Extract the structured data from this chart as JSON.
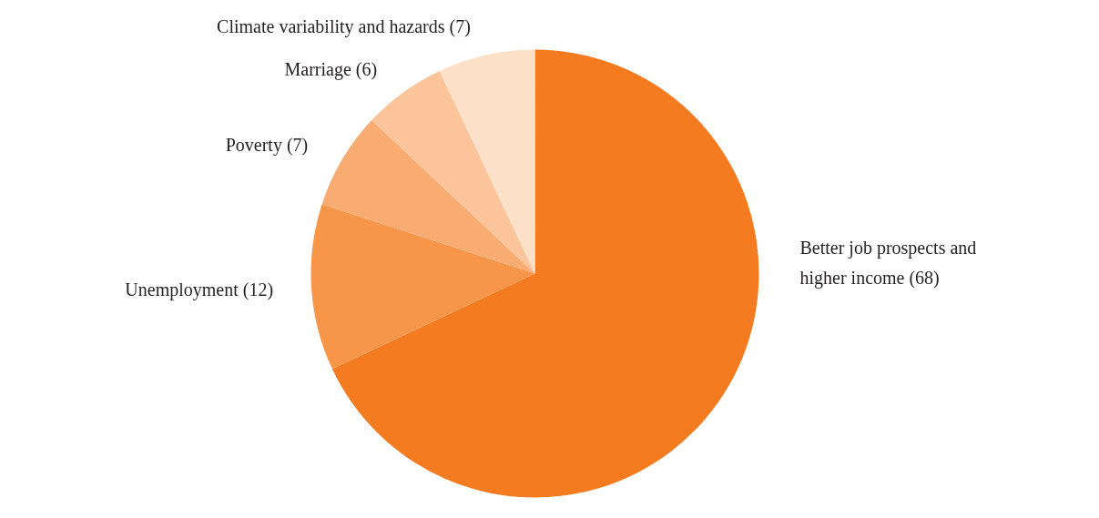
{
  "chart_data": {
    "type": "pie",
    "categories": [
      "Better job prospects and higher income (68)",
      "Unemployment (12)",
      "Poverty (7)",
      "Marriage (6)",
      "Climate variability and hazards (7)"
    ],
    "values": [
      68,
      12,
      7,
      6,
      7
    ],
    "colors": [
      "#f47b20",
      "#f79548",
      "#f9ac72",
      "#fbc49b",
      "#fde0c8"
    ]
  }
}
